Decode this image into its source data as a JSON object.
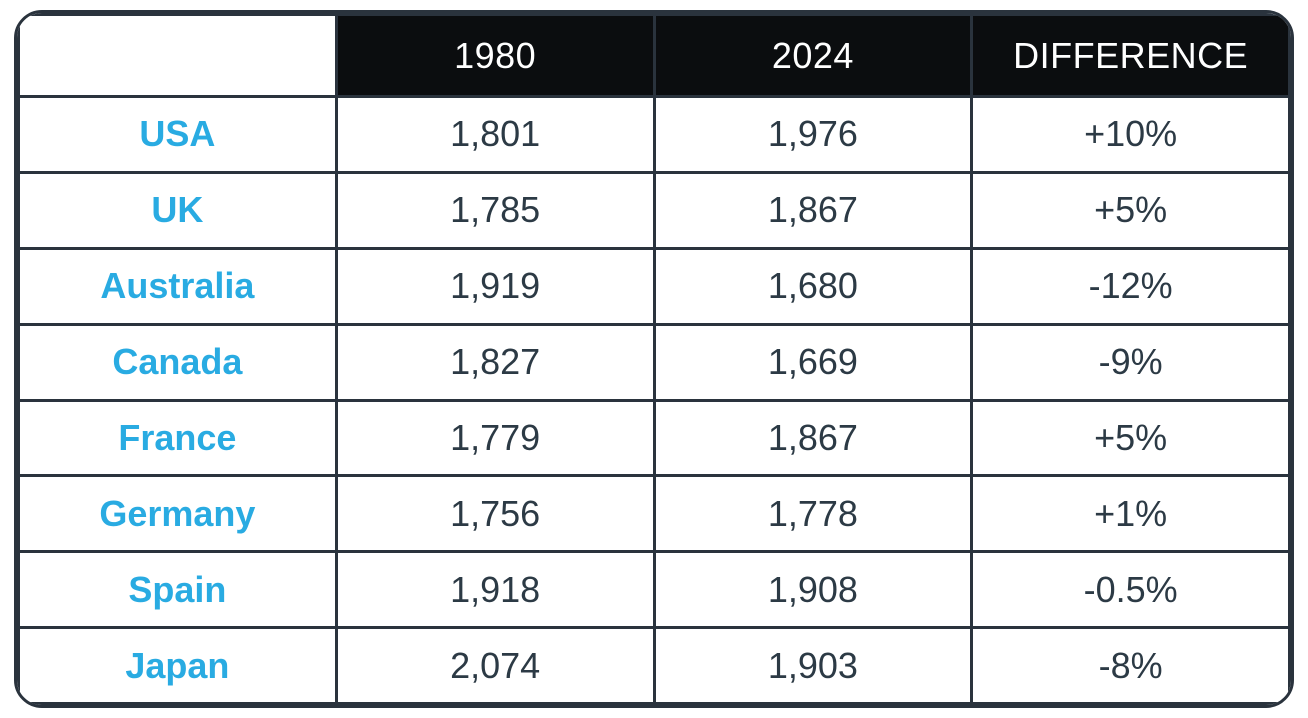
{
  "table": {
    "columns": [
      "",
      "1980",
      "2024",
      "DIFFERENCE"
    ],
    "rows": [
      {
        "country": "USA",
        "v1980": "1,801",
        "v2024": "1,976",
        "diff": "+10%"
      },
      {
        "country": "UK",
        "v1980": "1,785",
        "v2024": "1,867",
        "diff": "+5%"
      },
      {
        "country": "Australia",
        "v1980": "1,919",
        "v2024": "1,680",
        "diff": "-12%"
      },
      {
        "country": "Canada",
        "v1980": "1,827",
        "v2024": "1,669",
        "diff": "-9%"
      },
      {
        "country": "France",
        "v1980": "1,779",
        "v2024": "1,867",
        "diff": "+5%"
      },
      {
        "country": "Germany",
        "v1980": "1,756",
        "v2024": "1,778",
        "diff": "+1%"
      },
      {
        "country": "Spain",
        "v1980": "1,918",
        "v2024": "1,908",
        "diff": "-0.5%"
      },
      {
        "country": "Japan",
        "v1980": "2,074",
        "v2024": "1,903",
        "diff": "-8%"
      }
    ]
  },
  "colors": {
    "accent_blue": "#29abe2",
    "header_bg": "#0b0d0f",
    "header_text": "#ffffff",
    "body_text": "#2c3a45",
    "border": "#2a333d"
  },
  "chart_data": {
    "type": "table",
    "categories": [
      "USA",
      "UK",
      "Australia",
      "Canada",
      "France",
      "Germany",
      "Spain",
      "Japan"
    ],
    "series": [
      {
        "name": "1980",
        "values": [
          1801,
          1785,
          1919,
          1827,
          1779,
          1756,
          1918,
          2074
        ]
      },
      {
        "name": "2024",
        "values": [
          1976,
          1867,
          1680,
          1669,
          1867,
          1778,
          1908,
          1903
        ]
      },
      {
        "name": "DIFFERENCE",
        "values": [
          "+10%",
          "+5%",
          "-12%",
          "-9%",
          "+5%",
          "+1%",
          "-0.5%",
          "-8%"
        ]
      }
    ],
    "legend_position": "none",
    "grid": true
  }
}
